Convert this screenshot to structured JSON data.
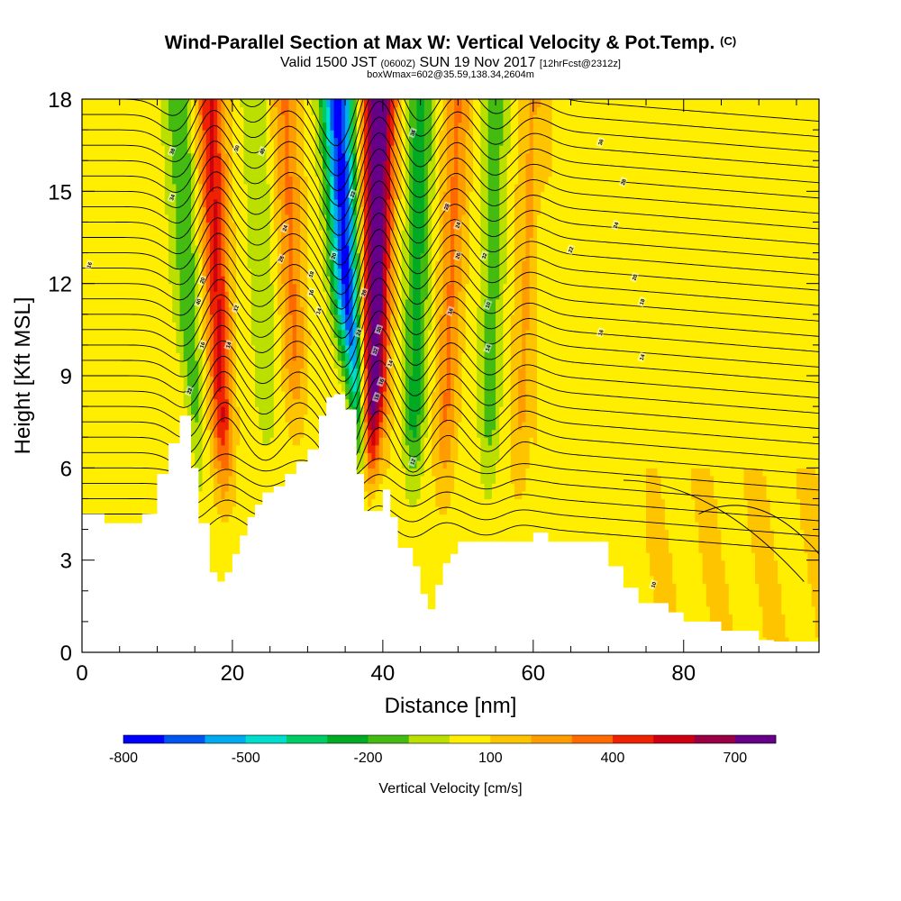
{
  "header": {
    "title": "Wind-Parallel Section at Max W: Vertical Velocity & Pot.Temp.",
    "copyright": "(C)",
    "subtitle_a": "Valid 1500 JST",
    "subtitle_b": "(0600Z)",
    "subtitle_c": "SUN 19 Nov 2017",
    "subtitle_d": "[12hrFcst@2312z]",
    "subsubtitle": "boxWmax=602@35.59,138.34,2604m"
  },
  "colors": {
    "scale": [
      "#0000ff",
      "#0055ee",
      "#00aaee",
      "#00ddcc",
      "#00cc66",
      "#00aa22",
      "#44bb11",
      "#bbe000",
      "#ffee00",
      "#ffc400",
      "#ff9d00",
      "#ff6a00",
      "#ee2200",
      "#cc0011",
      "#990044",
      "#660088"
    ],
    "contour": "#000000",
    "terrain": "#ffffff"
  },
  "chart_data": {
    "type": "heatmap",
    "xlabel": "Distance [nm]",
    "ylabel": "Height [Kft MSL]",
    "xlim": [
      0,
      98
    ],
    "ylim": [
      0,
      18
    ],
    "xticks": [
      0,
      20,
      40,
      60,
      80
    ],
    "yticks": [
      0,
      3,
      6,
      9,
      12,
      15,
      18
    ],
    "colorbar": {
      "label": "Vertical Velocity [cm/s]",
      "boundaries": [
        -800,
        -700,
        -600,
        -500,
        -400,
        -300,
        -200,
        -100,
        0,
        100,
        200,
        300,
        400,
        500,
        600,
        700,
        800
      ],
      "tick_labels": [
        "-800",
        "-500",
        "-200",
        "100",
        "400",
        "700"
      ],
      "tick_values": [
        -800,
        -500,
        -200,
        100,
        400,
        700
      ]
    },
    "terrain": {
      "x": [
        0,
        3,
        7,
        8,
        10,
        11.5,
        13,
        14.5,
        15.5,
        17,
        18,
        19,
        20,
        21,
        22,
        23,
        24,
        25.5,
        27,
        28.5,
        30,
        31.5,
        32.5,
        33.5,
        35,
        36.5,
        37.5,
        38.5,
        40,
        41,
        42,
        44,
        45,
        46,
        47,
        48,
        49,
        50,
        51,
        52,
        55,
        58,
        60,
        62,
        65,
        68,
        70,
        72,
        74,
        76,
        78,
        80,
        85,
        88,
        90,
        92,
        94,
        98
      ],
      "y": [
        4.5,
        4.2,
        4.2,
        4.5,
        5.8,
        6.8,
        7.7,
        6,
        4.2,
        2.6,
        2.3,
        2.6,
        3.2,
        3.8,
        4.4,
        4.8,
        5.2,
        5.4,
        5.8,
        6.2,
        6.6,
        7.7,
        8.3,
        8.4,
        7.9,
        5.8,
        4.6,
        4.6,
        5.3,
        4.4,
        3.4,
        2.8,
        1.9,
        1.4,
        2.2,
        2.9,
        3.2,
        3.6,
        3.6,
        3.6,
        3.6,
        3.6,
        3.9,
        3.6,
        3.6,
        3.6,
        2.8,
        2.1,
        1.6,
        1.6,
        1.3,
        1.0,
        0.7,
        0.7,
        0.4,
        0.35,
        0.35,
        0.35
      ]
    },
    "velocity_features": [
      {
        "name": "downdraft",
        "x_top": 13,
        "x_bottom": 15,
        "vmin": -250
      },
      {
        "name": "updraft",
        "x_top": 17,
        "x_bottom": 19,
        "vmax": 450
      },
      {
        "name": "downdraft",
        "x_top": 23,
        "x_bottom": 25,
        "vmin": -150
      },
      {
        "name": "updraft",
        "x_top": 27,
        "x_bottom": 29,
        "vmax": 250
      },
      {
        "name": "downdraft",
        "x_top": 34,
        "x_bottom": 36.5,
        "vmin": -800
      },
      {
        "name": "updraft",
        "x_top": 39.5,
        "x_bottom": 38.5,
        "vmax": 780
      },
      {
        "name": "downdraft",
        "x_top": 45,
        "x_bottom": 44,
        "vmin": -300
      },
      {
        "name": "updraft",
        "x_top": 50,
        "x_bottom": 48,
        "vmax": 250
      },
      {
        "name": "downdraft",
        "x_top": 55,
        "x_bottom": 54,
        "vmin": -200
      },
      {
        "name": "updraft",
        "x_top": 60,
        "x_bottom": 58,
        "vmax": 150
      }
    ],
    "contour_labels": [
      {
        "x": 12,
        "y": 16.3,
        "text": "38"
      },
      {
        "x": 12,
        "y": 14.8,
        "text": "34"
      },
      {
        "x": 1,
        "y": 12.6,
        "text": "16"
      },
      {
        "x": 20.6,
        "y": 16.4,
        "text": "30"
      },
      {
        "x": 24,
        "y": 16.3,
        "text": "40"
      },
      {
        "x": 27,
        "y": 13.8,
        "text": "24"
      },
      {
        "x": 26.5,
        "y": 12.8,
        "text": "26"
      },
      {
        "x": 30.5,
        "y": 12.3,
        "text": "18"
      },
      {
        "x": 30.5,
        "y": 11.7,
        "text": "16"
      },
      {
        "x": 31.5,
        "y": 11.1,
        "text": "14"
      },
      {
        "x": 33.5,
        "y": 12.9,
        "text": "20"
      },
      {
        "x": 36,
        "y": 14.9,
        "text": "22"
      },
      {
        "x": 37.5,
        "y": 11.7,
        "text": "26"
      },
      {
        "x": 36.8,
        "y": 10.4,
        "text": "24"
      },
      {
        "x": 39.5,
        "y": 10.5,
        "text": "30"
      },
      {
        "x": 39,
        "y": 9.8,
        "text": "32"
      },
      {
        "x": 41,
        "y": 9.4,
        "text": "14"
      },
      {
        "x": 39.8,
        "y": 8.8,
        "text": "16"
      },
      {
        "x": 39.2,
        "y": 8.3,
        "text": "18"
      },
      {
        "x": 44,
        "y": 16.9,
        "text": "36"
      },
      {
        "x": 48.5,
        "y": 14.5,
        "text": "28"
      },
      {
        "x": 50,
        "y": 13.9,
        "text": "24"
      },
      {
        "x": 50,
        "y": 12.9,
        "text": "26"
      },
      {
        "x": 53.5,
        "y": 12.9,
        "text": "32"
      },
      {
        "x": 49,
        "y": 11.1,
        "text": "16"
      },
      {
        "x": 54,
        "y": 11.3,
        "text": "10"
      },
      {
        "x": 54,
        "y": 9.9,
        "text": "14"
      },
      {
        "x": 44,
        "y": 6.2,
        "text": "12"
      },
      {
        "x": 69,
        "y": 16.6,
        "text": "36"
      },
      {
        "x": 72,
        "y": 15.3,
        "text": "28"
      },
      {
        "x": 71,
        "y": 13.9,
        "text": "24"
      },
      {
        "x": 65,
        "y": 13.1,
        "text": "22"
      },
      {
        "x": 73.5,
        "y": 12.2,
        "text": "20"
      },
      {
        "x": 74.5,
        "y": 11.4,
        "text": "18"
      },
      {
        "x": 69,
        "y": 10.4,
        "text": "16"
      },
      {
        "x": 74.5,
        "y": 9.6,
        "text": "14"
      },
      {
        "x": 76,
        "y": 2.2,
        "text": "10"
      },
      {
        "x": 20.5,
        "y": 11.2,
        "text": "12"
      },
      {
        "x": 16,
        "y": 12.1,
        "text": "20"
      },
      {
        "x": 15.5,
        "y": 11.4,
        "text": "40"
      },
      {
        "x": 16,
        "y": 10,
        "text": "16"
      },
      {
        "x": 19.5,
        "y": 10,
        "text": "14"
      },
      {
        "x": 14.3,
        "y": 8.5,
        "text": "22"
      }
    ]
  }
}
